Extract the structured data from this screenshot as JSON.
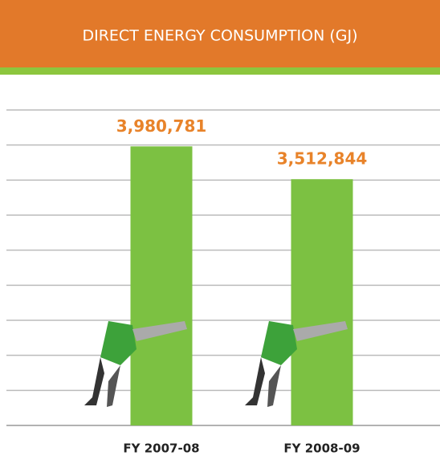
{
  "chart_data": {
    "type": "bar",
    "title": "DIRECT ENERGY CONSUMPTION (GJ)",
    "categories": [
      "FY 2007-08",
      "FY 2008-09"
    ],
    "values": [
      3980781,
      3512844
    ],
    "value_labels": [
      "3,980,781",
      "3,512,844"
    ],
    "color": "#7cc142",
    "ylim": [
      0,
      4500000
    ],
    "yticks": [
      0,
      500000,
      1000000,
      1500000,
      2000000,
      2500000,
      3000000,
      3500000,
      4000000,
      4500000
    ],
    "grid": true
  }
}
